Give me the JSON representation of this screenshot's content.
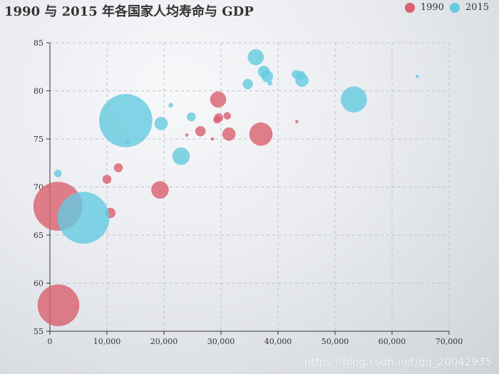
{
  "chart_data": {
    "type": "scatter",
    "title": "1990 与 2015 年各国家人均寿命与 GDP",
    "xlabel": "",
    "ylabel": "",
    "xlim": [
      0,
      70000
    ],
    "ylim": [
      55,
      85
    ],
    "xticks": [
      0,
      10000,
      20000,
      30000,
      40000,
      50000,
      60000,
      70000
    ],
    "xtick_labels": [
      "0",
      "10,000",
      "20,000",
      "30,000",
      "40,000",
      "50,000",
      "60,000",
      "70,000"
    ],
    "yticks": [
      55,
      60,
      65,
      70,
      75,
      80,
      85
    ],
    "ytick_labels": [
      "55",
      "60",
      "65",
      "70",
      "75",
      "80",
      "85"
    ],
    "grid": true,
    "legend_position": "top-right",
    "series": [
      {
        "name": "1990",
        "color": "#d9606e",
        "points": [
          {
            "x": 1500,
            "y": 57.7,
            "size": 29
          },
          {
            "x": 1400,
            "y": 68.0,
            "size": 34
          },
          {
            "x": 10600,
            "y": 67.3,
            "size": 7
          },
          {
            "x": 10000,
            "y": 70.8,
            "size": 6
          },
          {
            "x": 12000,
            "y": 72.0,
            "size": 6
          },
          {
            "x": 19300,
            "y": 69.7,
            "size": 12
          },
          {
            "x": 24000,
            "y": 75.4,
            "size": 2
          },
          {
            "x": 26400,
            "y": 75.8,
            "size": 7
          },
          {
            "x": 28500,
            "y": 75.0,
            "size": 2
          },
          {
            "x": 29300,
            "y": 77.0,
            "size": 5
          },
          {
            "x": 29600,
            "y": 77.2,
            "size": 6
          },
          {
            "x": 29500,
            "y": 79.1,
            "size": 11
          },
          {
            "x": 31100,
            "y": 77.4,
            "size": 5
          },
          {
            "x": 31400,
            "y": 75.5,
            "size": 9
          },
          {
            "x": 37000,
            "y": 75.5,
            "size": 16
          },
          {
            "x": 43300,
            "y": 76.8,
            "size": 2
          }
        ]
      },
      {
        "name": "2015",
        "color": "#64cbe0",
        "points": [
          {
            "x": 1400,
            "y": 71.4,
            "size": 5
          },
          {
            "x": 5900,
            "y": 66.8,
            "size": 36
          },
          {
            "x": 13300,
            "y": 76.9,
            "size": 37
          },
          {
            "x": 13600,
            "y": 74.7,
            "size": 3
          },
          {
            "x": 19500,
            "y": 76.6,
            "size": 9
          },
          {
            "x": 21200,
            "y": 78.5,
            "size": 3
          },
          {
            "x": 23000,
            "y": 73.2,
            "size": 12
          },
          {
            "x": 24800,
            "y": 77.3,
            "size": 6
          },
          {
            "x": 34700,
            "y": 80.7,
            "size": 7
          },
          {
            "x": 36100,
            "y": 83.5,
            "size": 11
          },
          {
            "x": 37500,
            "y": 82.0,
            "size": 8
          },
          {
            "x": 38100,
            "y": 81.5,
            "size": 8
          },
          {
            "x": 38600,
            "y": 80.8,
            "size": 3
          },
          {
            "x": 43200,
            "y": 81.7,
            "size": 6
          },
          {
            "x": 44000,
            "y": 81.6,
            "size": 6
          },
          {
            "x": 44200,
            "y": 81.1,
            "size": 9
          },
          {
            "x": 53300,
            "y": 79.1,
            "size": 18
          },
          {
            "x": 64400,
            "y": 81.5,
            "size": 2
          }
        ]
      }
    ]
  },
  "watermark": "https://blog.csdn.net/qq_20042935"
}
